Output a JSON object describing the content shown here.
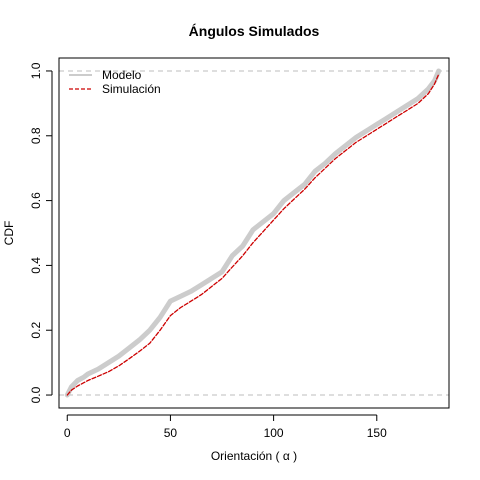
{
  "chart_data": {
    "type": "line",
    "title": "Ángulos Simulados",
    "xlabel": "Orientación ( α )",
    "ylabel": "CDF",
    "xlim": [
      -4,
      185
    ],
    "ylim": [
      -0.04,
      1.04
    ],
    "x_ticks": [
      {
        "value": 0,
        "label": "0"
      },
      {
        "value": 50,
        "label": "50"
      },
      {
        "value": 100,
        "label": "100"
      },
      {
        "value": 150,
        "label": "150"
      }
    ],
    "y_ticks": [
      {
        "value": 0.0,
        "label": "0.0"
      },
      {
        "value": 0.2,
        "label": "0.2"
      },
      {
        "value": 0.4,
        "label": "0.4"
      },
      {
        "value": 0.6,
        "label": "0.6"
      },
      {
        "value": 0.8,
        "label": "0.8"
      },
      {
        "value": 1.0,
        "label": "1.0"
      }
    ],
    "reference_lines": [
      0,
      1
    ],
    "legend": {
      "placement": "top-left",
      "entries": [
        {
          "label": "Modelo",
          "series": "modelo"
        },
        {
          "label": "Simulación",
          "series": "simulacion"
        }
      ]
    },
    "series": [
      {
        "name": "Modelo",
        "key": "modelo",
        "color": "#cccccc",
        "style": "solid",
        "x": [
          0,
          2,
          5,
          8,
          10,
          15,
          20,
          25,
          30,
          35,
          40,
          45,
          50,
          55,
          60,
          65,
          70,
          75,
          80,
          85,
          90,
          95,
          100,
          105,
          110,
          115,
          120,
          125,
          130,
          135,
          140,
          145,
          150,
          155,
          160,
          165,
          170,
          175,
          178,
          180
        ],
        "values": [
          0.0,
          0.025,
          0.045,
          0.055,
          0.065,
          0.08,
          0.1,
          0.12,
          0.145,
          0.17,
          0.2,
          0.24,
          0.29,
          0.305,
          0.32,
          0.34,
          0.36,
          0.38,
          0.43,
          0.46,
          0.51,
          0.535,
          0.56,
          0.6,
          0.625,
          0.65,
          0.69,
          0.715,
          0.745,
          0.77,
          0.795,
          0.815,
          0.835,
          0.855,
          0.875,
          0.895,
          0.915,
          0.945,
          0.97,
          1.0
        ]
      },
      {
        "name": "Simulación",
        "key": "simulacion",
        "color": "#cc0000",
        "style": "dashed",
        "x": [
          0,
          2,
          5,
          8,
          10,
          15,
          20,
          25,
          30,
          35,
          40,
          45,
          50,
          55,
          60,
          65,
          70,
          75,
          80,
          85,
          90,
          95,
          100,
          105,
          110,
          115,
          120,
          125,
          130,
          135,
          140,
          145,
          150,
          155,
          160,
          165,
          170,
          175,
          178,
          180
        ],
        "values": [
          0.0,
          0.015,
          0.028,
          0.038,
          0.045,
          0.058,
          0.072,
          0.09,
          0.112,
          0.135,
          0.16,
          0.2,
          0.245,
          0.27,
          0.29,
          0.31,
          0.335,
          0.36,
          0.395,
          0.43,
          0.47,
          0.505,
          0.54,
          0.575,
          0.605,
          0.635,
          0.67,
          0.7,
          0.73,
          0.755,
          0.78,
          0.8,
          0.82,
          0.84,
          0.86,
          0.88,
          0.9,
          0.93,
          0.96,
          0.99
        ]
      }
    ]
  }
}
